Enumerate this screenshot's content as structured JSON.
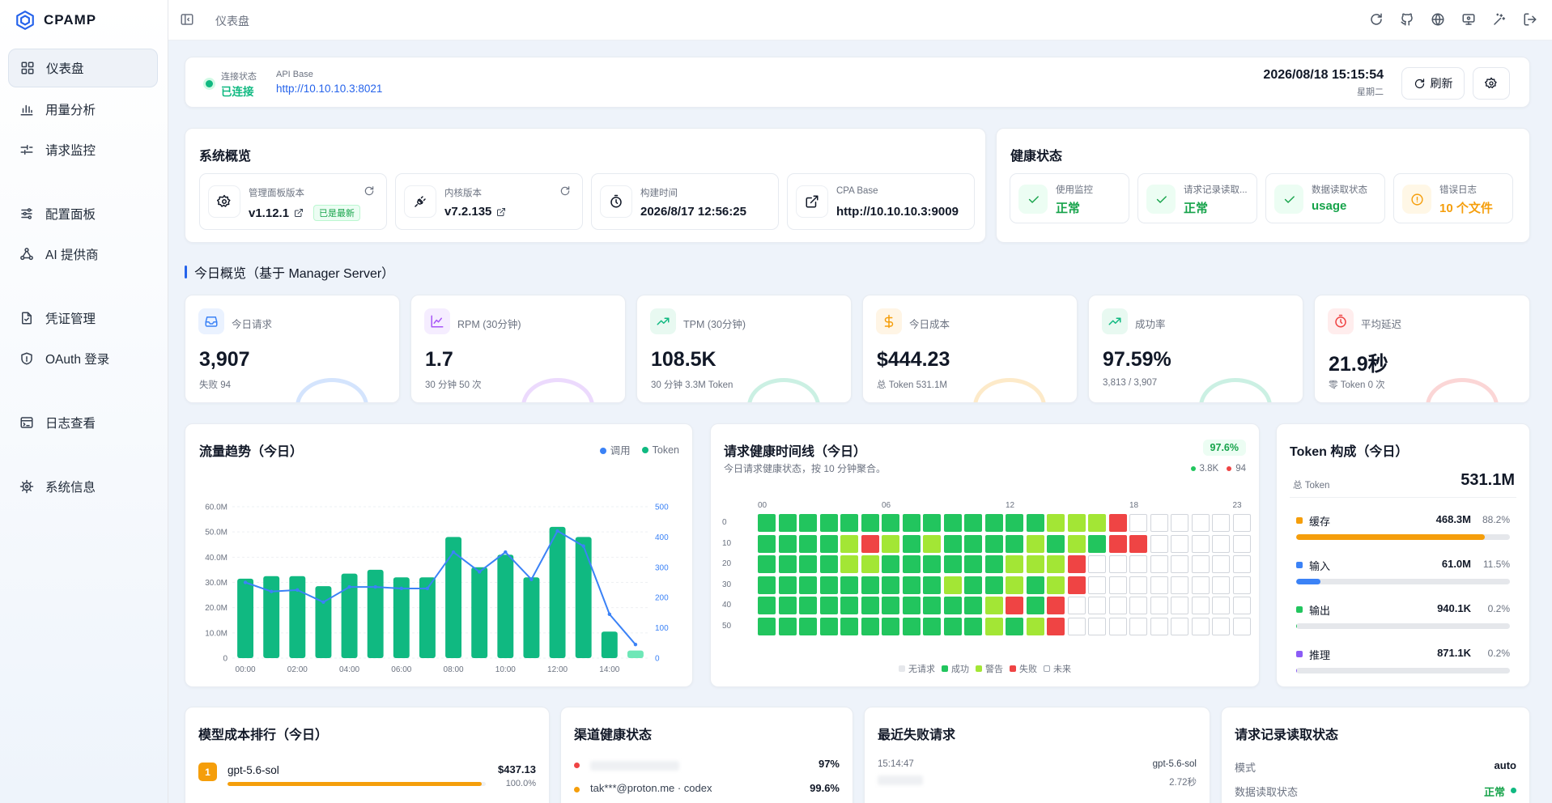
{
  "app": {
    "name": "CPAMP"
  },
  "sidebar": {
    "items": [
      {
        "label": "仪表盘",
        "icon": "dashboard-icon"
      },
      {
        "label": "用量分析",
        "icon": "bar-chart-icon"
      },
      {
        "label": "请求监控",
        "icon": "activity-icon"
      },
      {
        "label": "配置面板",
        "icon": "sliders-icon"
      },
      {
        "label": "AI 提供商",
        "icon": "network-icon"
      },
      {
        "label": "凭证管理",
        "icon": "file-check-icon"
      },
      {
        "label": "OAuth 登录",
        "icon": "shield-icon"
      },
      {
        "label": "日志查看",
        "icon": "terminal-icon"
      },
      {
        "label": "系统信息",
        "icon": "cpu-icon"
      }
    ]
  },
  "topbar": {
    "breadcrumb": "仪表盘",
    "icons": [
      "refresh-icon",
      "github-icon",
      "globe-icon",
      "monitor-icon",
      "magic-icon",
      "logout-icon"
    ]
  },
  "status": {
    "conn_label": "连接状态",
    "conn_value": "已连接",
    "api_label": "API Base",
    "api_value": "http://10.10.10.3:8021",
    "datetime": "2026/08/18 15:15:54",
    "weekday": "星期二",
    "refresh_label": "刷新"
  },
  "overview": {
    "title": "系统概览",
    "items": [
      {
        "label": "管理面板版本",
        "value": "v1.12.1",
        "tag": "已是最新"
      },
      {
        "label": "内核版本",
        "value": "v7.2.135"
      },
      {
        "label": "构建时间",
        "value": "2026/8/17 12:56:25"
      },
      {
        "label": "CPA Base",
        "value": "http://10.10.10.3:9009"
      }
    ]
  },
  "health": {
    "title": "健康状态",
    "items": [
      {
        "label": "使用监控",
        "value": "正常",
        "color": "#16a34a"
      },
      {
        "label": "请求记录读取...",
        "value": "正常",
        "color": "#16a34a"
      },
      {
        "label": "数据读取状态",
        "value": "usage",
        "color": "#16a34a"
      },
      {
        "label": "错误日志",
        "value": "10 个文件",
        "color": "#f59e0b"
      }
    ]
  },
  "today": {
    "title": "今日概览（基于 Manager Server）",
    "kpis": [
      {
        "label": "今日请求",
        "value": "3,907",
        "sub": "失败 94",
        "color": "#3b82f6"
      },
      {
        "label": "RPM (30分钟)",
        "value": "1.7",
        "sub": "30 分钟 50 次",
        "color": "#a855f7"
      },
      {
        "label": "TPM (30分钟)",
        "value": "108.5K",
        "sub": "30 分钟 3.3M Token",
        "color": "#10b981"
      },
      {
        "label": "今日成本",
        "value": "$444.23",
        "sub": "总 Token 531.1M",
        "color": "#f59e0b"
      },
      {
        "label": "成功率",
        "value": "97.59%",
        "sub": "3,813 / 3,907",
        "color": "#10b981"
      },
      {
        "label": "平均延迟",
        "value": "21.9秒",
        "sub": "零 Token 0 次",
        "color": "#ef4444"
      }
    ]
  },
  "traffic": {
    "title": "流量趋势（今日）",
    "legend": [
      "调用",
      "Token"
    ]
  },
  "chart_data": {
    "type": "bar",
    "x": [
      "00:00",
      "01:00",
      "02:00",
      "03:00",
      "04:00",
      "05:00",
      "06:00",
      "07:00",
      "08:00",
      "09:00",
      "10:00",
      "11:00",
      "12:00",
      "13:00",
      "14:00",
      "15:00"
    ],
    "x_tick_labels": [
      "00:00",
      "02:00",
      "04:00",
      "06:00",
      "08:00",
      "10:00",
      "12:00",
      "14:00"
    ],
    "series": [
      {
        "name": "Token",
        "type": "bar",
        "axis": "left",
        "color": "#10b981",
        "values": [
          31.5,
          32.5,
          32.5,
          28.5,
          33.5,
          35,
          32,
          32,
          48,
          36,
          41,
          32,
          52,
          48,
          10.5,
          3
        ]
      },
      {
        "name": "调用",
        "type": "line",
        "axis": "right",
        "color": "#3b82f6",
        "values": [
          250,
          220,
          225,
          185,
          235,
          235,
          230,
          230,
          350,
          285,
          350,
          260,
          420,
          370,
          145,
          45
        ]
      }
    ],
    "y_left": {
      "ticks": [
        "0",
        "10.0M",
        "20.0M",
        "30.0M",
        "40.0M",
        "50.0M",
        "60.0M"
      ],
      "range": [
        0,
        60
      ]
    },
    "y_right": {
      "ticks": [
        "0",
        "100",
        "200",
        "300",
        "400",
        "500"
      ],
      "range": [
        0,
        500
      ]
    }
  },
  "timeline": {
    "title": "请求健康时间线（今日）",
    "rate": "97.6%",
    "subtitle": "今日请求健康状态，按 10 分钟聚合。",
    "ok_count": "3.8K",
    "fail_count": "94",
    "hours": [
      "00",
      "06",
      "12",
      "18",
      "23"
    ],
    "rows": [
      "0",
      "10",
      "20",
      "30",
      "40",
      "50"
    ],
    "grid": [
      "SSSSSSSSSSSSSSWWWFNNNNNNNN",
      "SSSSWFWSWSSSSWSWSFFNNNNNNNN",
      "SSSSWWSSSSSSWWWFNNNNNNNN",
      "SSSSSSSSSWSSWSWFNNNNNNNN",
      "SSSSSSSSSSSWFSFNNNNNNNN",
      "SSSSSSSSSSSWSWFNNNNNNNN"
    ],
    "legend": [
      "无请求",
      "成功",
      "警告",
      "失败",
      "未来"
    ],
    "colors": {
      "none": "#e5e7eb",
      "ok": "#22c55e",
      "warn": "#a3e635",
      "fail": "#ef4444",
      "future": "#ffffff"
    }
  },
  "token": {
    "title": "Token 构成（今日）",
    "total_label": "总 Token",
    "total": "531.1M",
    "rows": [
      {
        "name": "缓存",
        "value": "468.3M",
        "pct": "88.2%",
        "frac": 0.882,
        "color": "#f59e0b"
      },
      {
        "name": "输入",
        "value": "61.0M",
        "pct": "11.5%",
        "frac": 0.115,
        "color": "#3b82f6"
      },
      {
        "name": "输出",
        "value": "940.1K",
        "pct": "0.2%",
        "frac": 0.002,
        "color": "#22c55e"
      },
      {
        "name": "推理",
        "value": "871.1K",
        "pct": "0.2%",
        "frac": 0.002,
        "color": "#8b5cf6"
      }
    ]
  },
  "model_cost": {
    "title": "模型成本排行（今日）",
    "rows": [
      {
        "rank": "1",
        "name": "gpt-5.6-sol",
        "cost": "$437.13",
        "pct": "100.0%",
        "frac": 0.985
      }
    ]
  },
  "channel": {
    "title": "渠道健康状态",
    "rows": [
      {
        "name": "",
        "rate": "97%",
        "color": "#ef4444"
      },
      {
        "name": "tak***@proton.me · codex",
        "rate": "99.6%",
        "color": "#f59e0b"
      }
    ]
  },
  "failed": {
    "title": "最近失败请求",
    "rows": [
      {
        "time": "15:14:47",
        "model": "gpt-5.6-sol",
        "latency": "2.72秒"
      }
    ]
  },
  "request_log": {
    "title": "请求记录读取状态",
    "rows": [
      {
        "label": "模式",
        "value": "auto"
      },
      {
        "label": "数据读取状态",
        "value": "正常"
      }
    ]
  }
}
